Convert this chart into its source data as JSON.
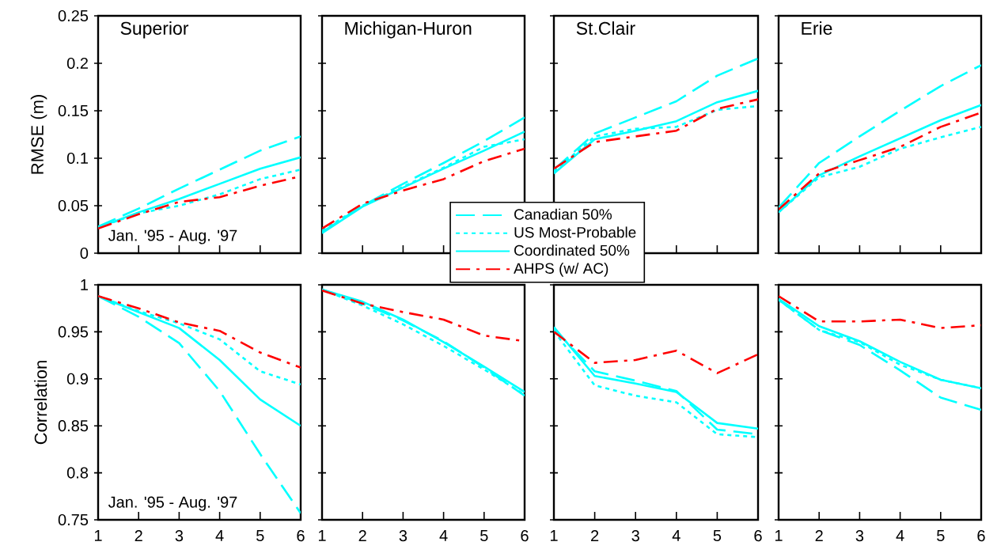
{
  "chart_data": [
    {
      "type": "line",
      "title": "Superior",
      "ylabel": "RMSE (m)",
      "annotations": [
        "Jan. '95 - Aug. '97"
      ],
      "x": [
        1,
        2,
        3,
        4,
        5,
        6
      ],
      "xlim": [
        1,
        6
      ],
      "ylim": [
        0,
        0.25
      ],
      "xticks": [
        1,
        2,
        3,
        4,
        5,
        6
      ],
      "yticks": [
        0,
        0.05,
        0.1,
        0.15,
        0.2,
        0.25
      ],
      "tick_labels": "y",
      "series": [
        {
          "color": "#00ffff",
          "line_style": "dashed",
          "values": [
            0.028,
            0.047,
            0.068,
            0.088,
            0.108,
            0.123
          ]
        },
        {
          "color": "#00ffff",
          "line_style": "dotted",
          "values": [
            0.027,
            0.042,
            0.05,
            0.062,
            0.078,
            0.088
          ]
        },
        {
          "color": "#00ffff",
          "line_style": "solid",
          "values": [
            0.027,
            0.043,
            0.057,
            0.073,
            0.089,
            0.101
          ]
        },
        {
          "color": "#ff0000",
          "line_style": "dashdot",
          "values": [
            0.026,
            0.041,
            0.054,
            0.059,
            0.071,
            0.081
          ]
        }
      ]
    },
    {
      "type": "line",
      "title": "Michigan-Huron",
      "x": [
        1,
        2,
        3,
        4,
        5,
        6
      ],
      "xlim": [
        1,
        6
      ],
      "ylim": [
        0,
        0.25
      ],
      "xticks": [
        1,
        2,
        3,
        4,
        5,
        6
      ],
      "yticks": [
        0,
        0.05,
        0.1,
        0.15,
        0.2,
        0.25
      ],
      "tick_labels": false,
      "legend": "bottom right",
      "series": [
        {
          "name": "Canadian 50%",
          "color": "#00ffff",
          "line_style": "dashed",
          "values": [
            0.022,
            0.05,
            0.073,
            0.095,
            0.118,
            0.143
          ]
        },
        {
          "name": "US Most-Probable",
          "color": "#00ffff",
          "line_style": "dotted",
          "values": [
            0.024,
            0.05,
            0.07,
            0.09,
            0.112,
            0.12
          ]
        },
        {
          "name": "Coordinated 50%",
          "color": "#00ffff",
          "line_style": "solid",
          "values": [
            0.021,
            0.049,
            0.069,
            0.089,
            0.108,
            0.128
          ]
        },
        {
          "name": "AHPS (w/ AC)",
          "color": "#ff0000",
          "line_style": "dashdot",
          "values": [
            0.026,
            0.052,
            0.066,
            0.078,
            0.097,
            0.11
          ]
        }
      ]
    },
    {
      "type": "line",
      "title": "St.Clair",
      "x": [
        1,
        2,
        3,
        4,
        5,
        6
      ],
      "xlim": [
        1,
        6
      ],
      "ylim": [
        0,
        0.25
      ],
      "xticks": [
        1,
        2,
        3,
        4,
        5,
        6
      ],
      "yticks": [
        0,
        0.05,
        0.1,
        0.15,
        0.2,
        0.25
      ],
      "tick_labels": false,
      "series": [
        {
          "color": "#00ffff",
          "line_style": "dashed",
          "values": [
            0.088,
            0.126,
            0.143,
            0.16,
            0.187,
            0.205
          ]
        },
        {
          "color": "#00ffff",
          "line_style": "dotted",
          "values": [
            0.086,
            0.123,
            0.131,
            0.133,
            0.151,
            0.155
          ]
        },
        {
          "color": "#00ffff",
          "line_style": "solid",
          "values": [
            0.084,
            0.12,
            0.129,
            0.139,
            0.159,
            0.171
          ]
        },
        {
          "color": "#ff0000",
          "line_style": "dashdot",
          "values": [
            0.089,
            0.117,
            0.123,
            0.129,
            0.152,
            0.162
          ]
        }
      ]
    },
    {
      "type": "line",
      "title": "Erie",
      "x": [
        1,
        2,
        3,
        4,
        5,
        6
      ],
      "xlim": [
        1,
        6
      ],
      "ylim": [
        0,
        0.25
      ],
      "xticks": [
        1,
        2,
        3,
        4,
        5,
        6
      ],
      "yticks": [
        0,
        0.05,
        0.1,
        0.15,
        0.2,
        0.25
      ],
      "tick_labels": false,
      "series": [
        {
          "color": "#00ffff",
          "line_style": "dashed",
          "values": [
            0.048,
            0.095,
            0.123,
            0.15,
            0.176,
            0.198
          ]
        },
        {
          "color": "#00ffff",
          "line_style": "dotted",
          "values": [
            0.043,
            0.08,
            0.091,
            0.11,
            0.122,
            0.133
          ]
        },
        {
          "color": "#00ffff",
          "line_style": "solid",
          "values": [
            0.043,
            0.082,
            0.102,
            0.121,
            0.14,
            0.156
          ]
        },
        {
          "color": "#ff0000",
          "line_style": "dashdot",
          "values": [
            0.046,
            0.084,
            0.098,
            0.112,
            0.133,
            0.148
          ]
        }
      ]
    },
    {
      "type": "line",
      "ylabel": "Correlation",
      "annotations": [
        "Jan. '95 - Aug. '97"
      ],
      "x": [
        1,
        2,
        3,
        4,
        5,
        6
      ],
      "xlim": [
        1,
        6
      ],
      "ylim": [
        0.75,
        1
      ],
      "xticks": [
        1,
        2,
        3,
        4,
        5,
        6
      ],
      "yticks": [
        0.75,
        0.8,
        0.85,
        0.9,
        0.95,
        1
      ],
      "series": [
        {
          "color": "#00ffff",
          "line_style": "dashed",
          "values": [
            0.988,
            0.966,
            0.938,
            0.887,
            0.82,
            0.757
          ]
        },
        {
          "color": "#00ffff",
          "line_style": "dotted",
          "values": [
            0.988,
            0.972,
            0.959,
            0.942,
            0.908,
            0.894
          ]
        },
        {
          "color": "#00ffff",
          "line_style": "solid",
          "values": [
            0.988,
            0.971,
            0.954,
            0.92,
            0.878,
            0.85
          ]
        },
        {
          "color": "#ff0000",
          "line_style": "dashdot",
          "values": [
            0.988,
            0.975,
            0.96,
            0.951,
            0.928,
            0.912
          ]
        }
      ]
    },
    {
      "type": "line",
      "x": [
        1,
        2,
        3,
        4,
        5,
        6
      ],
      "xlim": [
        1,
        6
      ],
      "ylim": [
        0.75,
        1
      ],
      "xticks": [
        1,
        2,
        3,
        4,
        5,
        6
      ],
      "yticks": [
        0.75,
        0.8,
        0.85,
        0.9,
        0.95,
        1
      ],
      "tick_labels": "x",
      "series": [
        {
          "color": "#00ffff",
          "line_style": "dashed",
          "values": [
            0.995,
            0.98,
            0.962,
            0.94,
            0.912,
            0.882
          ]
        },
        {
          "color": "#00ffff",
          "line_style": "dotted",
          "values": [
            0.995,
            0.978,
            0.958,
            0.935,
            0.91,
            0.883
          ]
        },
        {
          "color": "#00ffff",
          "line_style": "solid",
          "values": [
            0.995,
            0.982,
            0.963,
            0.939,
            0.913,
            0.886
          ]
        },
        {
          "color": "#ff0000",
          "line_style": "dashdot",
          "values": [
            0.994,
            0.98,
            0.971,
            0.963,
            0.946,
            0.94
          ]
        }
      ]
    },
    {
      "type": "line",
      "x": [
        1,
        2,
        3,
        4,
        5,
        6
      ],
      "xlim": [
        1,
        6
      ],
      "ylim": [
        0.75,
        1
      ],
      "xticks": [
        1,
        2,
        3,
        4,
        5,
        6
      ],
      "yticks": [
        0.75,
        0.8,
        0.85,
        0.9,
        0.95,
        1
      ],
      "tick_labels": "x",
      "series": [
        {
          "color": "#00ffff",
          "line_style": "dashed",
          "values": [
            0.953,
            0.908,
            0.898,
            0.887,
            0.846,
            0.841
          ]
        },
        {
          "color": "#00ffff",
          "line_style": "dotted",
          "values": [
            0.951,
            0.893,
            0.882,
            0.875,
            0.841,
            0.838
          ]
        },
        {
          "color": "#00ffff",
          "line_style": "solid",
          "values": [
            0.955,
            0.903,
            0.895,
            0.886,
            0.853,
            0.847
          ]
        },
        {
          "color": "#ff0000",
          "line_style": "dashdot",
          "values": [
            0.95,
            0.917,
            0.92,
            0.93,
            0.906,
            0.926
          ]
        }
      ]
    },
    {
      "type": "line",
      "x": [
        1,
        2,
        3,
        4,
        5,
        6
      ],
      "xlim": [
        1,
        6
      ],
      "ylim": [
        0.75,
        1
      ],
      "xticks": [
        1,
        2,
        3,
        4,
        5,
        6
      ],
      "yticks": [
        0.75,
        0.8,
        0.85,
        0.9,
        0.95,
        1
      ],
      "tick_labels": "x",
      "series": [
        {
          "color": "#00ffff",
          "line_style": "dashed",
          "values": [
            0.984,
            0.952,
            0.936,
            0.909,
            0.88,
            0.867
          ]
        },
        {
          "color": "#00ffff",
          "line_style": "dotted",
          "values": [
            0.984,
            0.952,
            0.939,
            0.915,
            0.899,
            0.89
          ]
        },
        {
          "color": "#00ffff",
          "line_style": "solid",
          "values": [
            0.985,
            0.956,
            0.94,
            0.918,
            0.899,
            0.89
          ]
        },
        {
          "color": "#ff0000",
          "line_style": "dashdot",
          "values": [
            0.988,
            0.961,
            0.961,
            0.963,
            0.954,
            0.957
          ]
        }
      ]
    }
  ]
}
